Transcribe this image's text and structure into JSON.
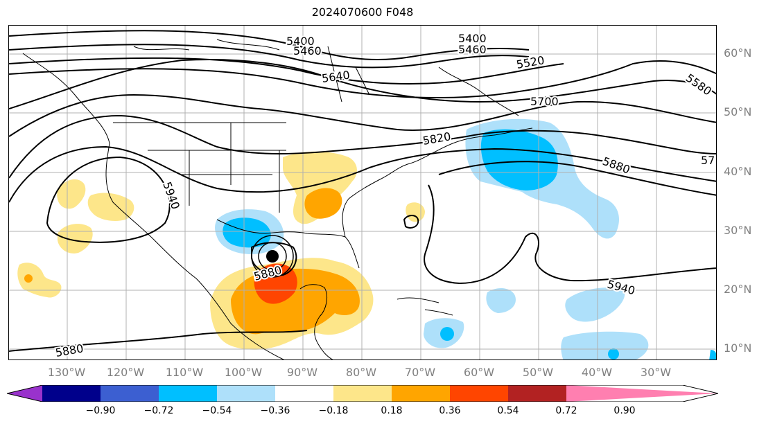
{
  "title": "2024070600 F048",
  "lat_labels": [
    "60°N",
    "50°N",
    "40°N",
    "30°N",
    "20°N",
    "10°N"
  ],
  "lon_labels": [
    "130°W",
    "120°W",
    "110°W",
    "100°W",
    "90°W",
    "80°W",
    "70°W",
    "60°W",
    "50°W",
    "40°W",
    "30°W"
  ],
  "contour_labels": [
    "5400",
    "5460",
    "5400",
    "5460",
    "5520",
    "5580",
    "5640",
    "5700",
    "5820",
    "5880",
    "57",
    "5940",
    "5880",
    "5940",
    "5880"
  ],
  "colorbar": {
    "ticks": [
      "−0.90",
      "−0.72",
      "−0.54",
      "−0.36",
      "−0.18",
      "0.18",
      "0.36",
      "0.54",
      "0.72",
      "0.90"
    ],
    "colors": [
      "#9932cc",
      "#00008b",
      "#3c5fd1",
      "#00bfff",
      "#aee0fa",
      "#ffffff",
      "#fde68a",
      "#ffa500",
      "#ff4500",
      "#b22222",
      "#ff7fb0"
    ]
  },
  "storm_marker": "tropical-cyclone-center"
}
